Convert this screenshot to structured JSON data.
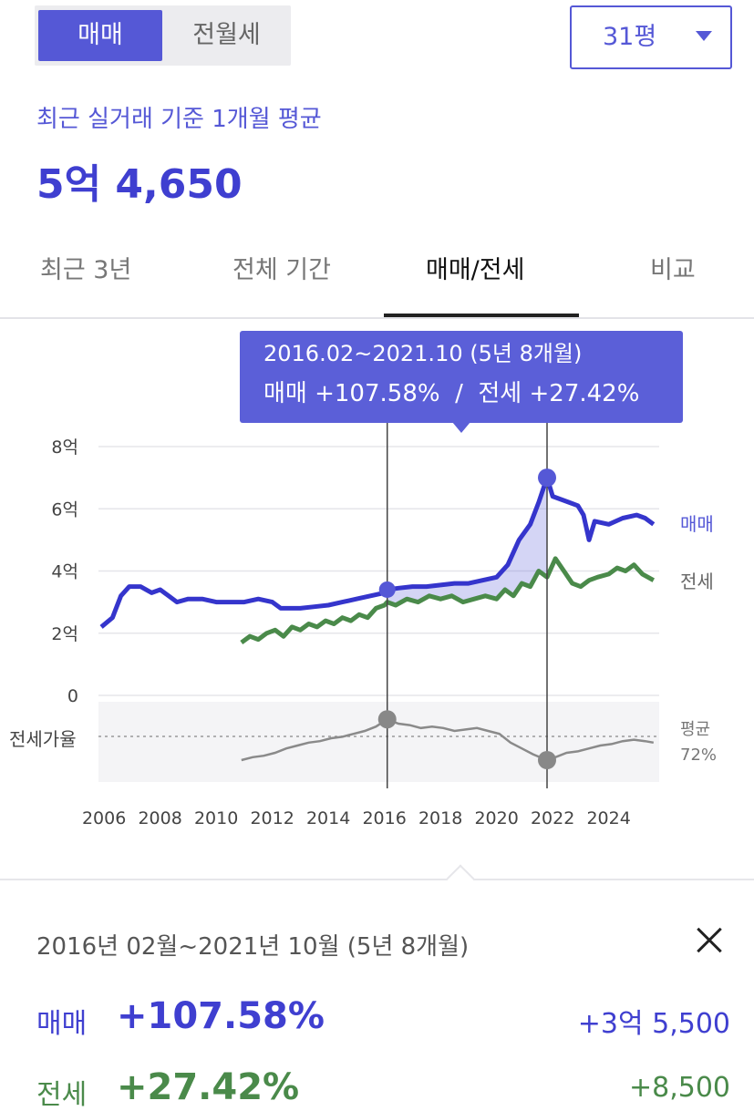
{
  "toggle": {
    "sale_label": "매매",
    "rent_label": "전월세"
  },
  "size_select": {
    "value": "31평"
  },
  "summary": {
    "caption": "최근 실거래 기준 1개월 평균",
    "price": "5억 4,650"
  },
  "tabs": [
    {
      "label": "최근 3년",
      "active": false
    },
    {
      "label": "전체 기간",
      "active": false
    },
    {
      "label": "매매/전세",
      "active": true
    },
    {
      "label": "비교",
      "active": false
    }
  ],
  "colors": {
    "accent": "#5558d6",
    "sale": "#3535cc",
    "jeonse": "#4a8a4a",
    "ratio": "#8a8a8a",
    "tooltip_bg": "#5b5fd8"
  },
  "tooltip": {
    "line1": "2016.02~2021.10 (5년 8개월)",
    "line2": "매매 +107.58%  /  전세 +27.42%"
  },
  "chart_data": {
    "type": "line",
    "x_unit": "year",
    "xlim": [
      2005.8,
      2025.8
    ],
    "ylim": [
      0,
      8
    ],
    "y_ticks": [
      0,
      2,
      4,
      6,
      8
    ],
    "y_tick_labels": [
      "0",
      "2억",
      "4억",
      "6억",
      "8억"
    ],
    "x_ticks": [
      2006,
      2008,
      2010,
      2012,
      2014,
      2016,
      2018,
      2020,
      2022,
      2024
    ],
    "x_tick_labels": [
      "2006",
      "2008",
      "2010",
      "2012",
      "2014",
      "2016",
      "2018",
      "2020",
      "2022",
      "2024"
    ],
    "grid": true,
    "series": [
      {
        "name": "매매",
        "x": [
          2005.9,
          2006.3,
          2006.6,
          2006.9,
          2007.3,
          2007.7,
          2008.0,
          2008.3,
          2008.6,
          2009.0,
          2009.5,
          2010.0,
          2010.5,
          2011.0,
          2011.5,
          2012.0,
          2012.3,
          2012.7,
          2013.0,
          2013.5,
          2014.0,
          2014.5,
          2015.0,
          2015.5,
          2016.0,
          2016.1,
          2016.5,
          2017.0,
          2017.5,
          2018.0,
          2018.5,
          2019.0,
          2019.5,
          2020.0,
          2020.4,
          2020.8,
          2021.2,
          2021.5,
          2021.8,
          2022.0,
          2022.3,
          2022.6,
          2022.9,
          2023.1,
          2023.3,
          2023.5,
          2024.0,
          2024.5,
          2025.0,
          2025.3,
          2025.6
        ],
        "values": [
          2.2,
          2.5,
          3.2,
          3.5,
          3.5,
          3.3,
          3.4,
          3.2,
          3.0,
          3.1,
          3.1,
          3.0,
          3.0,
          3.0,
          3.1,
          3.0,
          2.8,
          2.8,
          2.8,
          2.85,
          2.9,
          3.0,
          3.1,
          3.2,
          3.3,
          3.4,
          3.45,
          3.5,
          3.5,
          3.55,
          3.6,
          3.6,
          3.7,
          3.8,
          4.2,
          5.0,
          5.5,
          6.2,
          7.0,
          6.4,
          6.3,
          6.2,
          6.1,
          5.8,
          5.0,
          5.6,
          5.5,
          5.7,
          5.8,
          5.7,
          5.5
        ]
      },
      {
        "name": "전세",
        "x": [
          2010.9,
          2011.2,
          2011.5,
          2011.8,
          2012.1,
          2012.4,
          2012.7,
          2013.0,
          2013.3,
          2013.6,
          2013.9,
          2014.2,
          2014.5,
          2014.8,
          2015.1,
          2015.4,
          2015.7,
          2016.0,
          2016.1,
          2016.4,
          2016.8,
          2017.2,
          2017.6,
          2018.0,
          2018.4,
          2018.8,
          2019.2,
          2019.6,
          2020.0,
          2020.3,
          2020.6,
          2020.9,
          2021.2,
          2021.5,
          2021.8,
          2022.1,
          2022.4,
          2022.7,
          2023.0,
          2023.3,
          2023.6,
          2024.0,
          2024.3,
          2024.6,
          2024.9,
          2025.2,
          2025.6
        ],
        "values": [
          1.7,
          1.9,
          1.8,
          2.0,
          2.1,
          1.9,
          2.2,
          2.1,
          2.3,
          2.2,
          2.4,
          2.3,
          2.5,
          2.4,
          2.6,
          2.5,
          2.8,
          2.9,
          3.0,
          2.9,
          3.1,
          3.0,
          3.2,
          3.1,
          3.2,
          3.0,
          3.1,
          3.2,
          3.1,
          3.4,
          3.2,
          3.6,
          3.5,
          4.0,
          3.8,
          4.4,
          4.0,
          3.6,
          3.5,
          3.7,
          3.8,
          3.9,
          4.1,
          4.0,
          4.2,
          3.9,
          3.7
        ]
      }
    ],
    "ratio": {
      "name": "전세가율",
      "average_label": "평균",
      "average_value": "72%",
      "x": [
        2010.9,
        2011.3,
        2011.7,
        2012.1,
        2012.5,
        2012.9,
        2013.3,
        2013.7,
        2014.1,
        2014.5,
        2014.9,
        2015.3,
        2015.7,
        2016.1,
        2016.5,
        2016.9,
        2017.3,
        2017.7,
        2018.1,
        2018.5,
        2018.9,
        2019.3,
        2019.7,
        2020.1,
        2020.5,
        2020.9,
        2021.3,
        2021.8,
        2022.1,
        2022.5,
        2022.9,
        2023.3,
        2023.7,
        2024.1,
        2024.5,
        2024.9,
        2025.3,
        2025.6
      ],
      "values": [
        60,
        62,
        63,
        65,
        68,
        70,
        72,
        73,
        75,
        76,
        78,
        80,
        83,
        88,
        85,
        84,
        82,
        83,
        82,
        80,
        81,
        82,
        80,
        78,
        72,
        68,
        64,
        60,
        62,
        65,
        66,
        68,
        70,
        71,
        73,
        74,
        73,
        72
      ],
      "average": 72,
      "range": [
        45,
        100
      ]
    },
    "selection": {
      "start": 2016.1,
      "end": 2021.8,
      "start_value": 3.4,
      "end_value": 7.0
    }
  },
  "period_panel": {
    "period": "2016년 02월~2021년 10월 (5년 8개월)",
    "sale_label": "매매",
    "sale_pct": "+107.58%",
    "sale_amount": "+3억 5,500",
    "jeonse_label": "전세",
    "jeonse_pct": "+27.42%",
    "jeonse_amount": "+8,500"
  }
}
